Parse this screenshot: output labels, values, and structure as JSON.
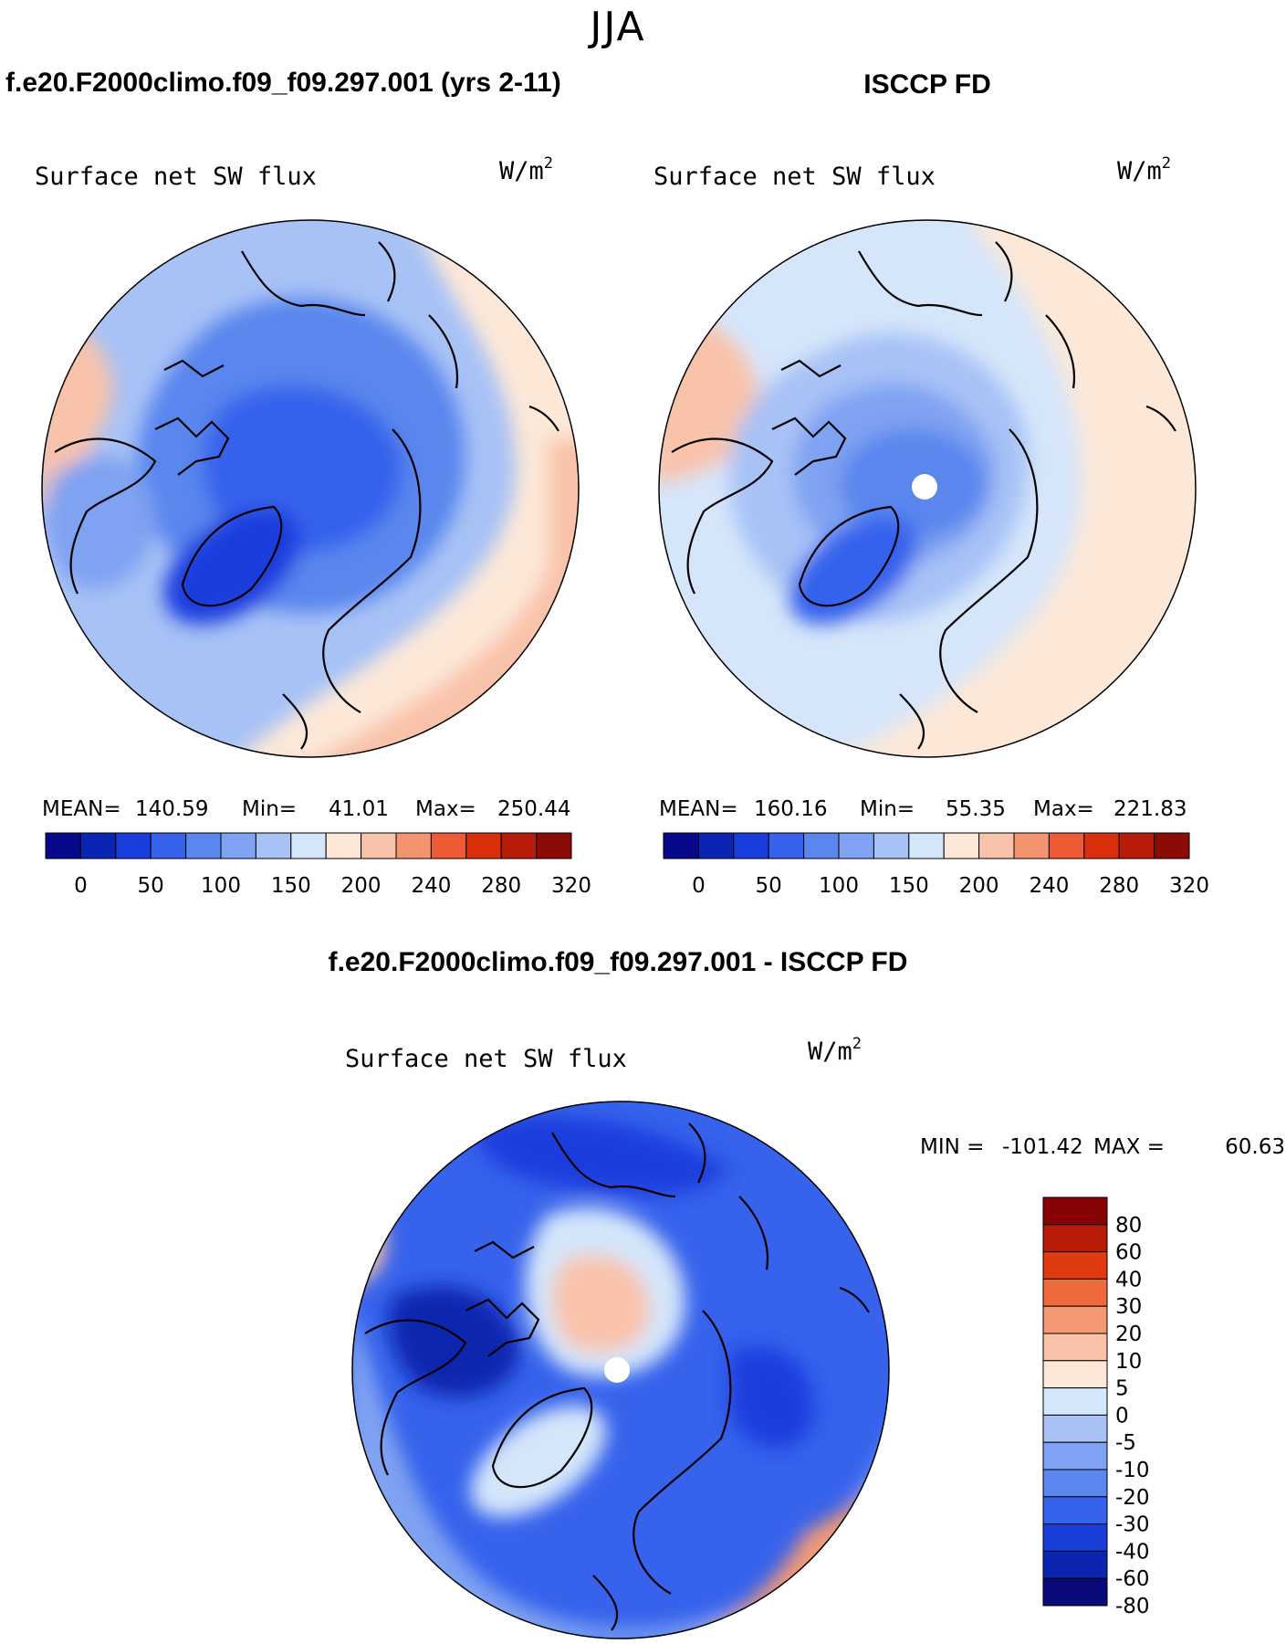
{
  "figure": {
    "season": "JJA",
    "title_left": "f.e20.F2000climo.f09_f09.297.001 (yrs 2-11)",
    "title_right": "ISCCP FD",
    "title_diff": "f.e20.F2000climo.f09_f09.297.001 - ISCCP FD"
  },
  "colors": {
    "abs_palette": [
      "#08088c",
      "#0a25b4",
      "#1a3ede",
      "#3662ec",
      "#5a86ee",
      "#7fa2f2",
      "#a8c2f6",
      "#d6e6fa",
      "#fde8d8",
      "#f9c3aa",
      "#f3946e",
      "#ee5a35",
      "#da2f0d",
      "#b71d08",
      "#8a0c04"
    ],
    "diff_palette": [
      "#0a0a7a",
      "#0a26b0",
      "#1a3ed8",
      "#3662ec",
      "#5a86ee",
      "#7fa2f2",
      "#a8c2f6",
      "#d4e6fa",
      "#fde8d8",
      "#f9c3aa",
      "#f39a74",
      "#ee6a3d",
      "#e03a10",
      "#b81c08",
      "#880404"
    ]
  },
  "chart_data": [
    {
      "type": "heatmap",
      "projection": "north-polar-stereographic",
      "panel": "model",
      "variable": "Surface net SW flux",
      "units_base": "W/m",
      "units_exp": "2",
      "mean_label": "MEAN=",
      "mean": "140.59",
      "min_label": "Min=",
      "min": "41.01",
      "max_label": "Max=",
      "max": "250.44",
      "colorbar_ticks": [
        "0",
        "50",
        "100",
        "150",
        "200",
        "240",
        "280",
        "320"
      ]
    },
    {
      "type": "heatmap",
      "projection": "north-polar-stereographic",
      "panel": "obs",
      "variable": "Surface net SW flux",
      "units_base": "W/m",
      "units_exp": "2",
      "mean_label": "MEAN=",
      "mean": "160.16",
      "min_label": "Min=",
      "min": "55.35",
      "max_label": "Max=",
      "max": "221.83",
      "colorbar_ticks": [
        "0",
        "50",
        "100",
        "150",
        "200",
        "240",
        "280",
        "320"
      ]
    },
    {
      "type": "heatmap",
      "projection": "north-polar-stereographic",
      "panel": "difference",
      "variable": "Surface net SW flux",
      "units_base": "W/m",
      "units_exp": "2",
      "min_label": "MIN =",
      "min": "-101.42",
      "max_label": "MAX =",
      "max": "60.63",
      "colorbar_ticks": [
        "80",
        "60",
        "40",
        "30",
        "20",
        "10",
        "5",
        "0",
        "-5",
        "-10",
        "-20",
        "-30",
        "-40",
        "-60",
        "-80"
      ]
    }
  ]
}
